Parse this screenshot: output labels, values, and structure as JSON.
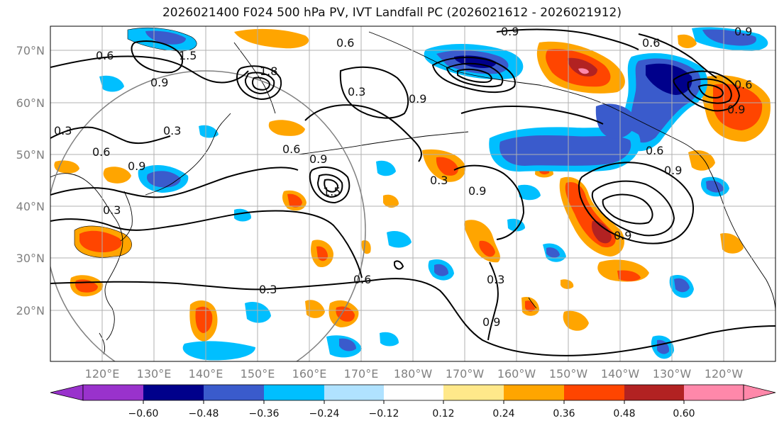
{
  "title": "2026021400 F024 500 hPa PV, IVT Landfall PC (2026021612 - 2026021912)",
  "lat_labels": [
    "70°N",
    "60°N",
    "50°N",
    "40°N",
    "30°N",
    "20°N"
  ],
  "lon_labels": [
    "120°E",
    "130°E",
    "140°E",
    "150°E",
    "160°E",
    "170°E",
    "180°W",
    "170°W",
    "160°W",
    "150°W",
    "140°W",
    "130°W",
    "120°W"
  ],
  "contour_labels": [
    "0.9",
    "0.6",
    "1.5",
    "1.8",
    "0.9",
    "0.6",
    "0.3",
    "0.9",
    "0.6",
    "0.3",
    "0.3",
    "0.6",
    "0.9",
    "0.9",
    "1.5",
    "0.9",
    "0.3",
    "0.9",
    "0.6",
    "0.3",
    "0.6",
    "0.3",
    "0.9",
    "0.3",
    "0.6",
    "0.9",
    "0.9",
    "0.6",
    "0.9"
  ],
  "colorbar": {
    "ticks": [
      "−0.60",
      "−0.48",
      "−0.36",
      "−0.24",
      "−0.12",
      "0.12",
      "0.24",
      "0.36",
      "0.48",
      "0.60"
    ],
    "colors": [
      "#9932cc",
      "#00008b",
      "#3a5bcc",
      "#00bfff",
      "#b0e2ff",
      "#ffffff",
      "#ffe88a",
      "#ffa500",
      "#ff4500",
      "#b22222",
      "#ff88aa"
    ]
  },
  "palette": {
    "land_outline": "#000000",
    "grid": "#b0b0b0",
    "contour": "#000000",
    "circle": "#808080"
  }
}
